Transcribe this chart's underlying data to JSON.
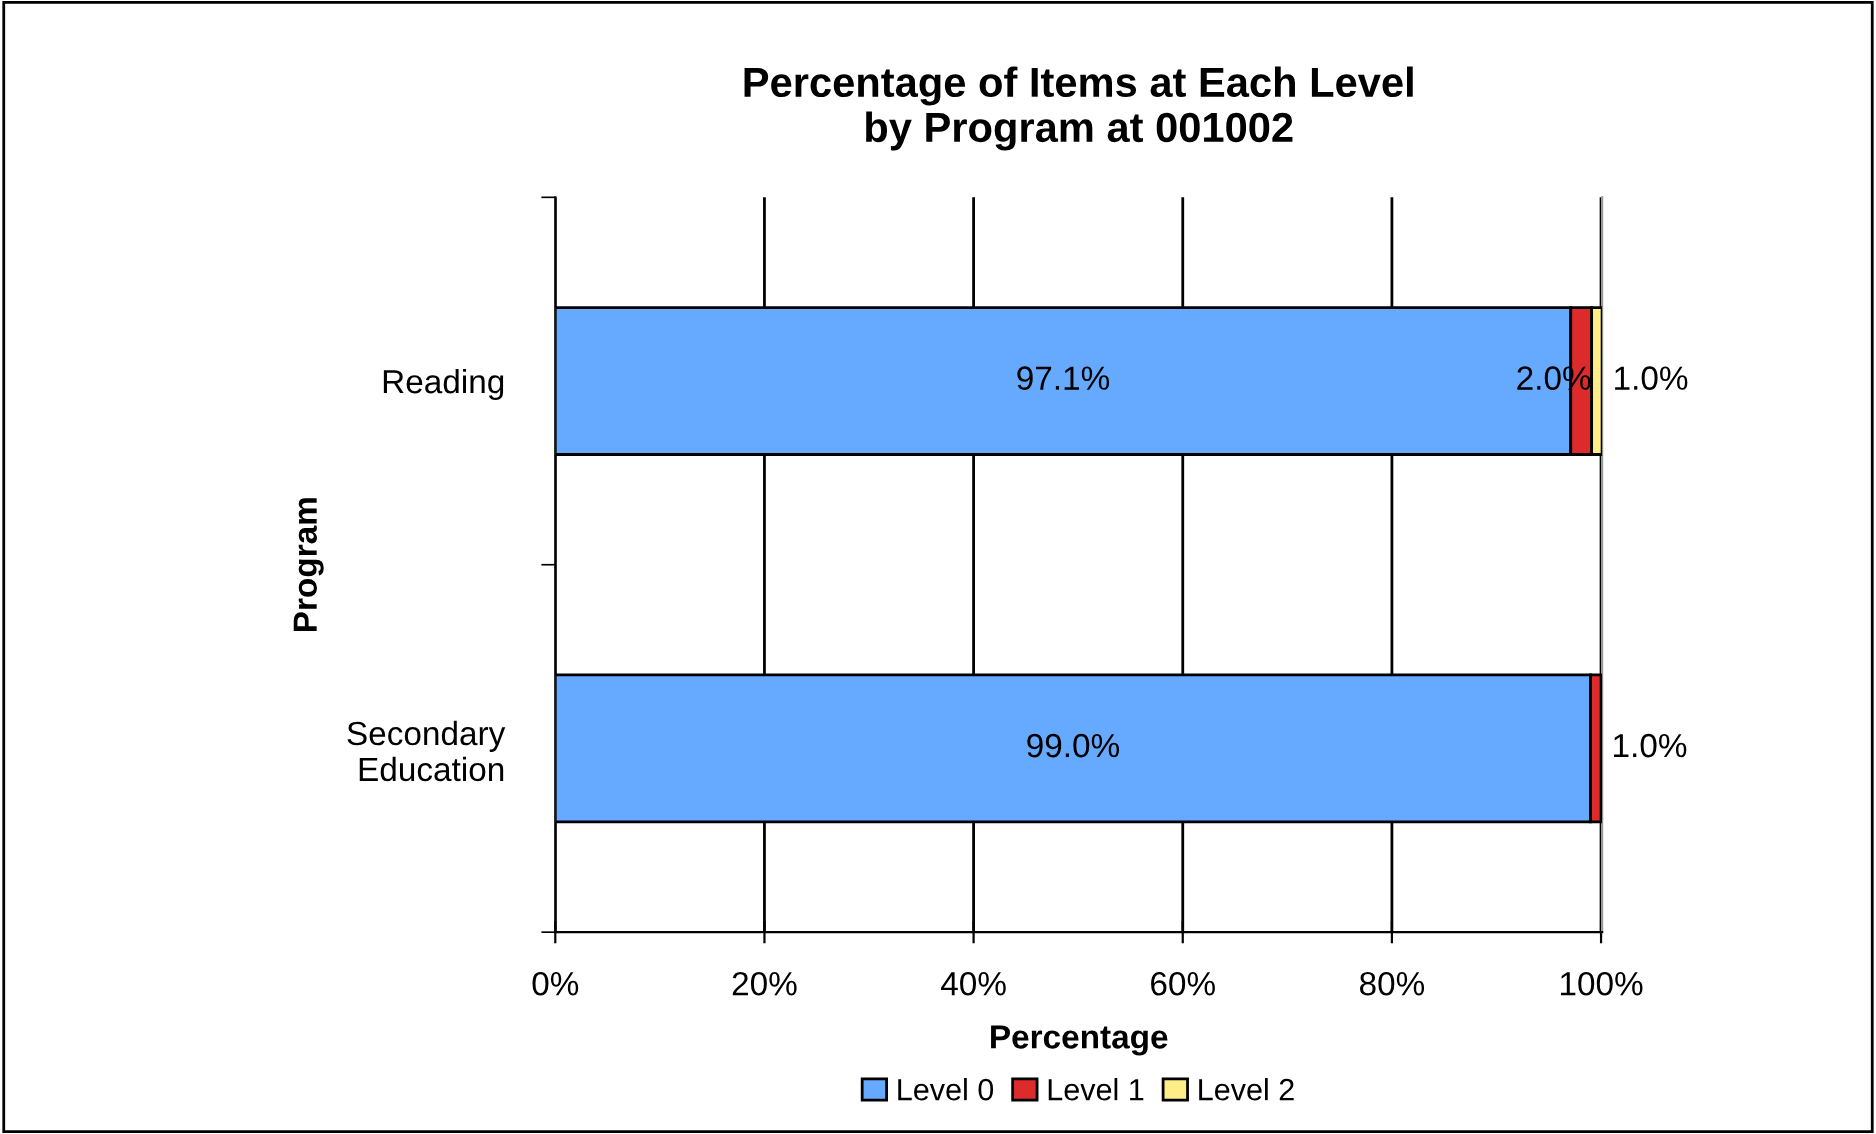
{
  "chart_data": {
    "type": "bar",
    "orientation": "horizontal",
    "stacked": true,
    "title": "Percentage of Items at Each Level\nby Program at 001002",
    "xlabel": "Percentage",
    "ylabel": "Program",
    "categories": [
      "Reading",
      "Secondary\nEducation"
    ],
    "series": [
      {
        "name": "Level 0",
        "color": "#66aaff",
        "values": [
          97.1,
          99.0
        ],
        "value_labels": [
          "97.1%",
          "99.0%"
        ]
      },
      {
        "name": "Level 1",
        "color": "#dd2a2a",
        "values": [
          2.0,
          1.0
        ],
        "value_labels": [
          "2.0%",
          "1.0%"
        ]
      },
      {
        "name": "Level 2",
        "color": "#ffee88",
        "values": [
          1.0,
          null
        ],
        "value_labels": [
          "1.0%",
          null
        ]
      }
    ],
    "xlim": [
      0,
      100.1
    ],
    "xticks": [
      {
        "value": 0,
        "label": "0%"
      },
      {
        "value": 20,
        "label": "20%"
      },
      {
        "value": 40,
        "label": "40%"
      },
      {
        "value": 60,
        "label": "60%"
      },
      {
        "value": 80,
        "label": "80%"
      },
      {
        "value": 100,
        "label": "100%"
      }
    ],
    "grid": "x",
    "legend": "bottom"
  }
}
